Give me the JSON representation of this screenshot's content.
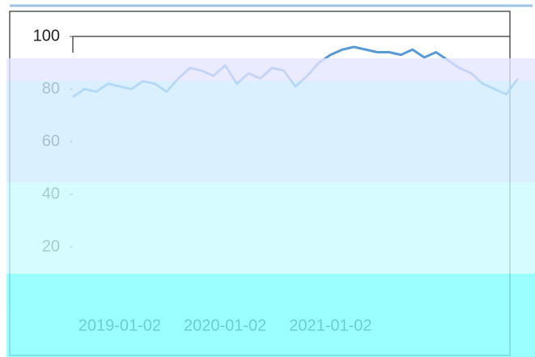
{
  "chart_data": {
    "type": "line",
    "categories": [
      null,
      null,
      null,
      null,
      "2019-01-02",
      null,
      null,
      null,
      null,
      null,
      null,
      null,
      null,
      "2020-01-02",
      null,
      null,
      null,
      null,
      null,
      null,
      null,
      null,
      "2021-01-02",
      null,
      null,
      null,
      null,
      null,
      null,
      null,
      null,
      null,
      null,
      null,
      null,
      null,
      null,
      null,
      null
    ],
    "series": [
      {
        "color": "#5b9bd5",
        "values": [
          77,
          80,
          79,
          82,
          81,
          80,
          83,
          82,
          79,
          84,
          88,
          87,
          85,
          89,
          82,
          86,
          84,
          88,
          87,
          81,
          85,
          90,
          93,
          95,
          96,
          95,
          94,
          94,
          93,
          95,
          92,
          94,
          91,
          88,
          86,
          82,
          80,
          78,
          84
        ]
      }
    ],
    "ylim": [
      0,
      100
    ],
    "yticks": [
      20,
      40,
      60,
      80,
      100
    ],
    "grid": false
  }
}
